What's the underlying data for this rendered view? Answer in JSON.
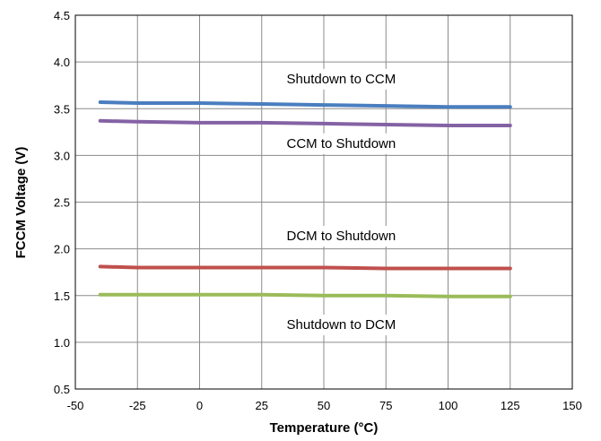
{
  "chart_data": {
    "type": "line",
    "xlabel": "Temperature (°C)",
    "ylabel": "FCCM Voltage (V)",
    "xlim": [
      -50,
      150
    ],
    "ylim": [
      0.5,
      4.5
    ],
    "xticks": [
      "-50",
      "-25",
      "0",
      "25",
      "50",
      "75",
      "100",
      "125",
      "150"
    ],
    "yticks": [
      "0.5",
      "1.0",
      "1.5",
      "2.0",
      "2.5",
      "3.0",
      "3.5",
      "4.0",
      "4.5"
    ],
    "grid": true,
    "series": [
      {
        "name": "Shutdown to CCM",
        "color": "#4a7ebf",
        "x": [
          -40,
          -25,
          0,
          25,
          50,
          75,
          100,
          125
        ],
        "y": [
          3.57,
          3.56,
          3.56,
          3.55,
          3.54,
          3.53,
          3.52,
          3.52
        ]
      },
      {
        "name": "CCM to Shutdown",
        "color": "#8462a4",
        "x": [
          -40,
          -25,
          0,
          25,
          50,
          75,
          100,
          125
        ],
        "y": [
          3.37,
          3.36,
          3.35,
          3.35,
          3.34,
          3.33,
          3.32,
          3.32
        ]
      },
      {
        "name": "DCM to Shutdown",
        "color": "#c0504d",
        "x": [
          -40,
          -25,
          0,
          25,
          50,
          75,
          100,
          125
        ],
        "y": [
          1.81,
          1.8,
          1.8,
          1.8,
          1.8,
          1.79,
          1.79,
          1.79
        ]
      },
      {
        "name": "Shutdown to DCM",
        "color": "#9bbb59",
        "x": [
          -40,
          -25,
          0,
          25,
          50,
          75,
          100,
          125
        ],
        "y": [
          1.51,
          1.51,
          1.51,
          1.51,
          1.5,
          1.5,
          1.49,
          1.49
        ]
      }
    ],
    "annotations": [
      {
        "text": "Shutdown to CCM",
        "x": 57,
        "y": 3.82
      },
      {
        "text": "CCM to Shutdown",
        "x": 57,
        "y": 3.13
      },
      {
        "text": "DCM to Shutdown",
        "x": 57,
        "y": 2.14
      },
      {
        "text": "Shutdown to DCM",
        "x": 57,
        "y": 1.19
      }
    ]
  }
}
